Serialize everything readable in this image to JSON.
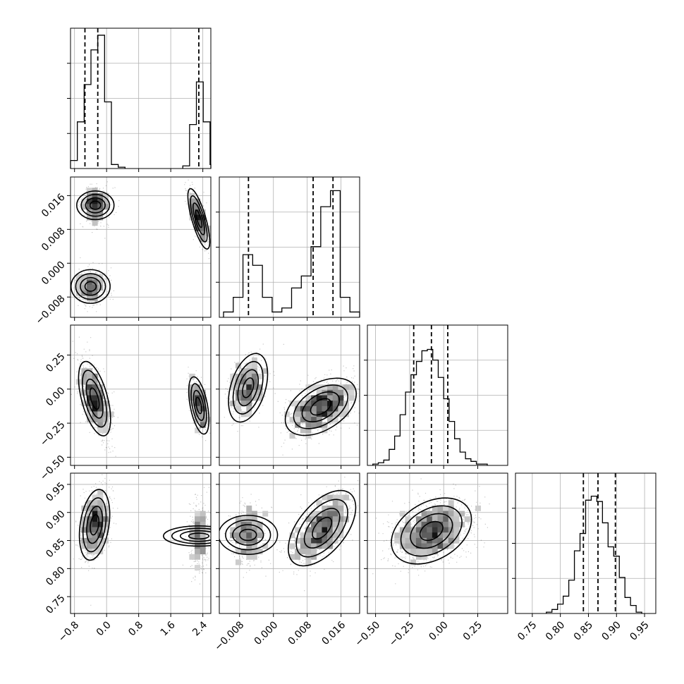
{
  "chart_data": {
    "type": "corner",
    "grid": true,
    "parameters": [
      {
        "range": [
          -0.9,
          2.6
        ],
        "ticks": [
          -0.8,
          0.0,
          0.8,
          1.6,
          2.4
        ],
        "tick_labels": [
          "−0.8",
          "0.0",
          "0.8",
          "1.6",
          "2.4"
        ]
      },
      {
        "range": [
          -0.0128,
          0.0204
        ],
        "ticks": [
          -0.008,
          0.0,
          0.008,
          0.016
        ],
        "tick_labels": [
          "−0.008",
          "0.000",
          "0.008",
          "0.016"
        ]
      },
      {
        "range": [
          -0.56,
          0.47
        ],
        "ticks": [
          -0.5,
          -0.25,
          0.0,
          0.25
        ],
        "tick_labels": [
          "−0.50",
          "−0.25",
          "0.00",
          "0.25"
        ]
      },
      {
        "range": [
          0.72,
          0.97
        ],
        "ticks": [
          0.75,
          0.8,
          0.85,
          0.9,
          0.95
        ],
        "tick_labels": [
          "0.75",
          "0.80",
          "0.85",
          "0.90",
          "0.95"
        ]
      }
    ],
    "histograms": [
      {
        "param": 0,
        "quantiles": [
          -0.54,
          -0.22,
          2.3
        ],
        "bins": [
          [
            -0.9,
            -0.73,
            0.06
          ],
          [
            -0.73,
            -0.56,
            0.35
          ],
          [
            -0.56,
            -0.39,
            0.63
          ],
          [
            -0.39,
            -0.22,
            0.89
          ],
          [
            -0.22,
            -0.05,
            1.0
          ],
          [
            -0.05,
            0.12,
            0.5
          ],
          [
            0.12,
            0.29,
            0.03
          ],
          [
            0.29,
            0.46,
            0.01
          ],
          [
            1.9,
            2.07,
            0.02
          ],
          [
            2.07,
            2.24,
            0.33
          ],
          [
            2.24,
            2.41,
            0.65
          ],
          [
            2.41,
            2.58,
            0.35
          ],
          [
            2.58,
            2.6,
            0.03
          ]
        ]
      },
      {
        "param": 1,
        "quantiles": [
          -0.0059,
          0.0094,
          0.0141
        ],
        "bins": [
          [
            -0.0118,
            -0.0095,
            0.04
          ],
          [
            -0.0095,
            -0.0072,
            0.15
          ],
          [
            -0.0072,
            -0.0049,
            0.47
          ],
          [
            -0.0049,
            -0.0026,
            0.39
          ],
          [
            -0.0026,
            -0.0003,
            0.15
          ],
          [
            -0.0003,
            0.002,
            0.04
          ],
          [
            0.002,
            0.0043,
            0.07
          ],
          [
            0.0043,
            0.0066,
            0.22
          ],
          [
            0.0066,
            0.0089,
            0.31
          ],
          [
            0.0089,
            0.0112,
            0.53
          ],
          [
            0.0112,
            0.0135,
            0.83
          ],
          [
            0.0135,
            0.0158,
            0.95
          ],
          [
            0.0158,
            0.0181,
            0.15
          ],
          [
            0.0181,
            0.0204,
            0.04
          ]
        ]
      },
      {
        "param": 2,
        "quantiles": [
          -0.22,
          -0.09,
          0.03
        ],
        "bins": [
          [
            -0.52,
            -0.48,
            0.01
          ],
          [
            -0.48,
            -0.44,
            0.02
          ],
          [
            -0.44,
            -0.4,
            0.04
          ],
          [
            -0.4,
            -0.36,
            0.12
          ],
          [
            -0.36,
            -0.32,
            0.22
          ],
          [
            -0.32,
            -0.28,
            0.38
          ],
          [
            -0.28,
            -0.24,
            0.55
          ],
          [
            -0.24,
            -0.2,
            0.68
          ],
          [
            -0.2,
            -0.16,
            0.78
          ],
          [
            -0.16,
            -0.12,
            0.86
          ],
          [
            -0.12,
            -0.08,
            0.87
          ],
          [
            -0.08,
            -0.04,
            0.79
          ],
          [
            -0.04,
            0.0,
            0.66
          ],
          [
            0.0,
            0.04,
            0.5
          ],
          [
            0.04,
            0.08,
            0.33
          ],
          [
            0.08,
            0.12,
            0.2
          ],
          [
            0.12,
            0.16,
            0.1
          ],
          [
            0.16,
            0.2,
            0.05
          ],
          [
            0.2,
            0.24,
            0.03
          ],
          [
            0.24,
            0.28,
            0.01
          ],
          [
            0.28,
            0.32,
            0.01
          ]
        ]
      },
      {
        "param": 3,
        "quantiles": [
          0.841,
          0.867,
          0.898
        ],
        "bins": [
          [
            0.775,
            0.785,
            0.01
          ],
          [
            0.785,
            0.795,
            0.03
          ],
          [
            0.795,
            0.805,
            0.07
          ],
          [
            0.805,
            0.815,
            0.13
          ],
          [
            0.815,
            0.825,
            0.25
          ],
          [
            0.825,
            0.835,
            0.47
          ],
          [
            0.835,
            0.845,
            0.6
          ],
          [
            0.845,
            0.855,
            0.85
          ],
          [
            0.855,
            0.865,
            0.88
          ],
          [
            0.865,
            0.875,
            0.84
          ],
          [
            0.875,
            0.885,
            0.68
          ],
          [
            0.885,
            0.895,
            0.5
          ],
          [
            0.895,
            0.905,
            0.43
          ],
          [
            0.905,
            0.915,
            0.27
          ],
          [
            0.915,
            0.925,
            0.12
          ],
          [
            0.925,
            0.935,
            0.06
          ],
          [
            0.935,
            0.945,
            0.01
          ]
        ]
      }
    ],
    "scatter_panels": [
      {
        "x": 0,
        "y": 1,
        "clusters": [
          {
            "cx": -0.28,
            "cy": 0.0137,
            "sx": 0.17,
            "sy": 0.0021,
            "rho": 0.0,
            "n": 520
          },
          {
            "cx": -0.4,
            "cy": -0.0055,
            "sx": 0.2,
            "sy": 0.0022,
            "rho": 0.0,
            "n": 430
          },
          {
            "cx": 2.3,
            "cy": 0.0105,
            "sx": 0.13,
            "sy": 0.0034,
            "rho": -0.75,
            "n": 460
          }
        ]
      },
      {
        "x": 0,
        "y": 2,
        "clusters": [
          {
            "cx": -0.3,
            "cy": -0.07,
            "sx": 0.19,
            "sy": 0.13,
            "rho": -0.55,
            "n": 880
          },
          {
            "cx": 2.3,
            "cy": -0.12,
            "sx": 0.12,
            "sy": 0.1,
            "rho": -0.5,
            "n": 430
          }
        ]
      },
      {
        "x": 0,
        "y": 3,
        "clusters": [
          {
            "cx": -0.3,
            "cy": 0.878,
            "sx": 0.18,
            "sy": 0.03,
            "rho": 0.3,
            "n": 880
          },
          {
            "cx": 2.3,
            "cy": 0.858,
            "sx": 0.12,
            "sy": 0.03,
            "rho": 0.0,
            "n": 430
          }
        ]
      },
      {
        "x": 1,
        "y": 2,
        "clusters": [
          {
            "cx": -0.006,
            "cy": 0.01,
            "sx": 0.0022,
            "sy": 0.12,
            "rho": 0.4,
            "n": 440
          },
          {
            "cx": 0.0112,
            "cy": -0.13,
            "sx": 0.004,
            "sy": 0.1,
            "rho": 0.45,
            "n": 880
          }
        ]
      },
      {
        "x": 1,
        "y": 3,
        "clusters": [
          {
            "cx": -0.006,
            "cy": 0.86,
            "sx": 0.0022,
            "sy": 0.025,
            "rho": 0.0,
            "n": 440
          },
          {
            "cx": 0.0115,
            "cy": 0.872,
            "sx": 0.0038,
            "sy": 0.032,
            "rho": 0.55,
            "n": 880
          }
        ]
      },
      {
        "x": 2,
        "y": 3,
        "clusters": [
          {
            "cx": -0.09,
            "cy": 0.867,
            "sx": 0.14,
            "sy": 0.028,
            "rho": 0.35,
            "n": 1400
          }
        ]
      }
    ]
  }
}
